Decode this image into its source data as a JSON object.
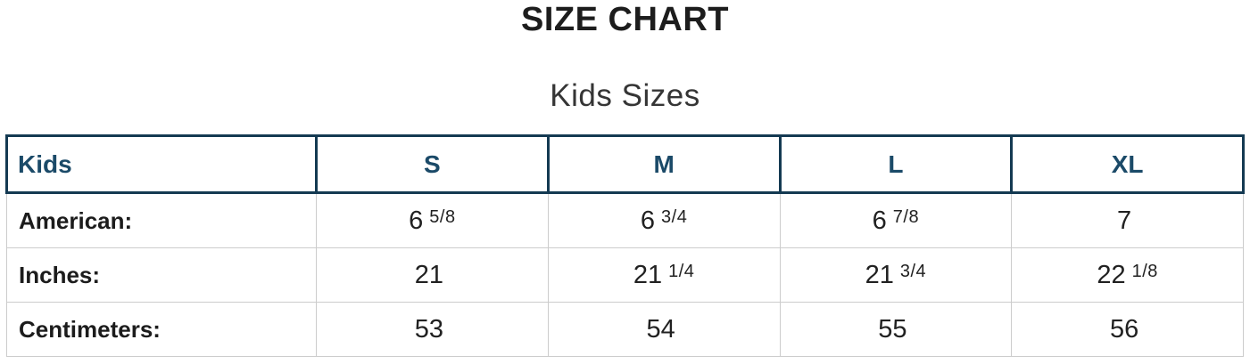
{
  "title": "SIZE CHART",
  "subtitle": "Kids Sizes",
  "chart_data": {
    "type": "table",
    "title": "SIZE CHART",
    "subtitle": "Kids Sizes",
    "corner_label": "Kids",
    "columns": [
      "S",
      "M",
      "L",
      "XL"
    ],
    "rows": [
      {
        "label": "American:",
        "values": [
          {
            "main": "6",
            "frac": "5/8"
          },
          {
            "main": "6",
            "frac": "3/4"
          },
          {
            "main": "6",
            "frac": "7/8"
          },
          {
            "main": "7",
            "frac": ""
          }
        ]
      },
      {
        "label": "Inches:",
        "values": [
          {
            "main": "21",
            "frac": ""
          },
          {
            "main": "21",
            "frac": "1/4"
          },
          {
            "main": "21",
            "frac": "3/4"
          },
          {
            "main": "22",
            "frac": "1/8"
          }
        ]
      },
      {
        "label": "Centimeters:",
        "values": [
          {
            "main": "53",
            "frac": ""
          },
          {
            "main": "54",
            "frac": ""
          },
          {
            "main": "55",
            "frac": ""
          },
          {
            "main": "56",
            "frac": ""
          }
        ]
      }
    ]
  },
  "colors": {
    "header_text": "#1b4a68",
    "header_border": "#143a52",
    "grid_line": "#cccccc",
    "title_text": "#1d1d1d",
    "body_text": "#212121"
  }
}
